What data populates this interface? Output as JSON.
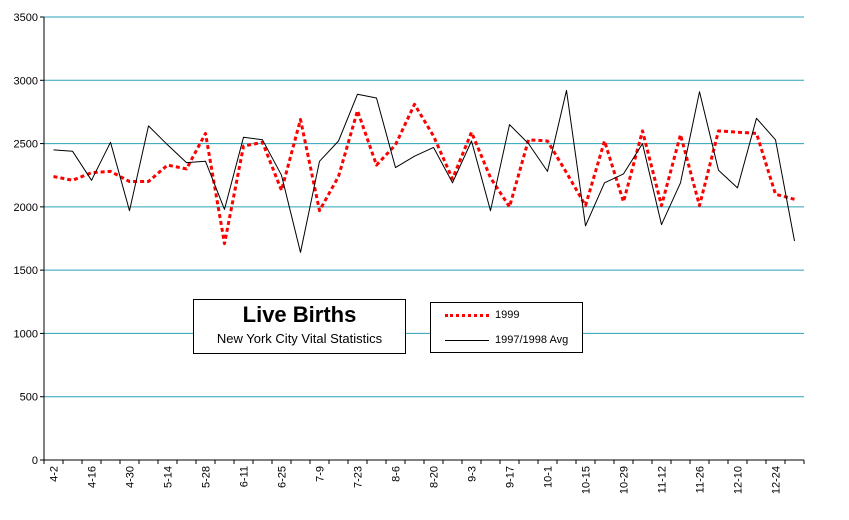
{
  "chart_data": {
    "type": "line",
    "title": "Live Births",
    "subtitle": "New York City Vital Statistics",
    "ylim": [
      0,
      3500
    ],
    "yticks": [
      0,
      500,
      1000,
      1500,
      2000,
      2500,
      3000,
      3500
    ],
    "grid": true,
    "x_tick_labels": [
      "4-2",
      "4-16",
      "4-30",
      "5-14",
      "5-28",
      "6-11",
      "6-25",
      "7-9",
      "7-23",
      "8-6",
      "8-20",
      "9-3",
      "9-17",
      "10-1",
      "10-15",
      "10-29",
      "11-12",
      "11-26",
      "12-10",
      "12-24"
    ],
    "legend_position": "bottom-center",
    "series": [
      {
        "name": "1999",
        "color": "#ff0000",
        "style": "dashed",
        "values": [
          2240,
          2210,
          2270,
          2280,
          2200,
          2200,
          2330,
          2300,
          2580,
          1710,
          2480,
          2510,
          2130,
          2690,
          1970,
          2240,
          2760,
          2330,
          2490,
          2810,
          2560,
          2220,
          2590,
          2230,
          2000,
          2530,
          2520,
          2270,
          2010,
          2520,
          2040,
          2600,
          2010,
          2570,
          2010,
          2600,
          2590,
          2580,
          2100,
          2060
        ]
      },
      {
        "name": "1997/1998 Avg",
        "color": "#000000",
        "style": "solid",
        "values": [
          2450,
          2440,
          2210,
          2510,
          1970,
          2640,
          2490,
          2350,
          2360,
          1980,
          2550,
          2530,
          2250,
          1640,
          2360,
          2520,
          2890,
          2860,
          2310,
          2400,
          2470,
          2190,
          2520,
          1970,
          2650,
          2500,
          2280,
          2920,
          1850,
          2190,
          2260,
          2500,
          1860,
          2190,
          2910,
          2290,
          2150,
          2700,
          2530,
          1730
        ]
      }
    ]
  }
}
